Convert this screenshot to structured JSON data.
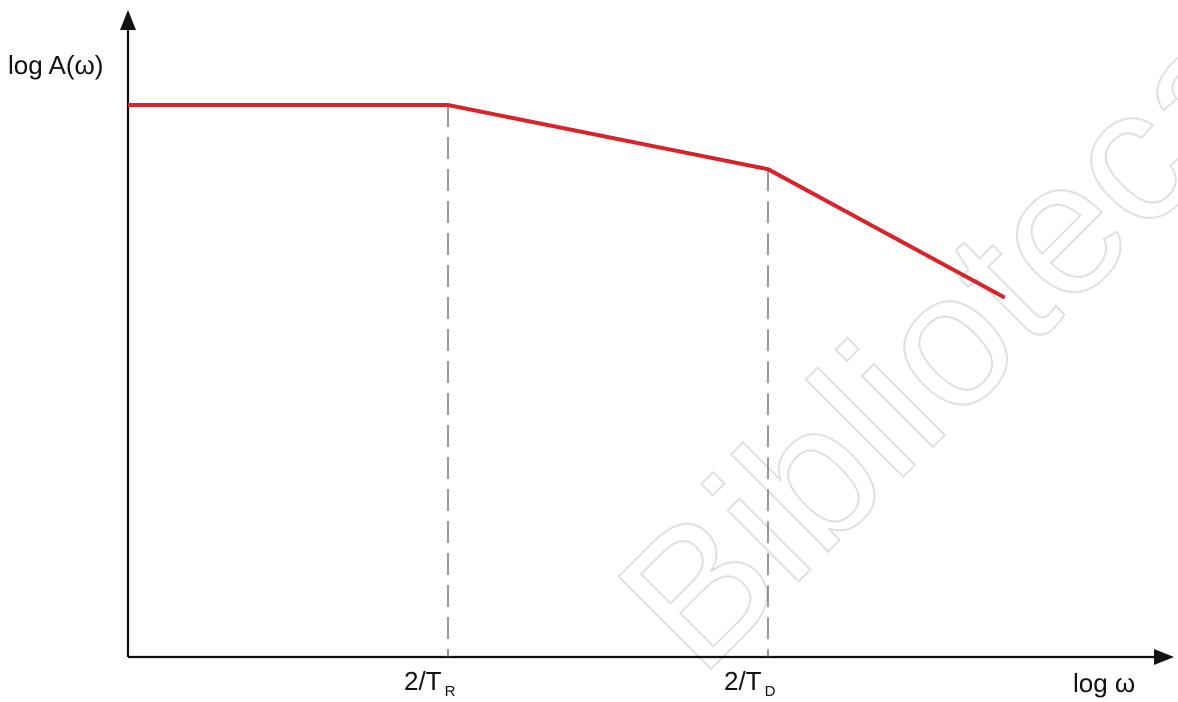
{
  "chart_data": {
    "type": "line",
    "title": "",
    "ylabel": "log A(ω)",
    "xlabel": "log ω",
    "ticks": [
      {
        "base": "2/T",
        "sub": "R"
      },
      {
        "base": "2/T",
        "sub": "D"
      }
    ],
    "series": [
      {
        "color": "#d9232a",
        "points": [
          {
            "x": 0.0,
            "y": 1.0
          },
          {
            "x": 1.0,
            "y": 1.0
          },
          {
            "x": 2.0,
            "y": 0.8
          },
          {
            "x": 2.74,
            "y": 0.4
          }
        ]
      }
    ],
    "breakpoints_x": [
      1.0,
      2.0
    ],
    "xlim": [
      0,
      3.2
    ],
    "ylim": [
      -0.72,
      1.24
    ],
    "grid": false
  },
  "watermark_text": "Bibliotecas UAQ"
}
